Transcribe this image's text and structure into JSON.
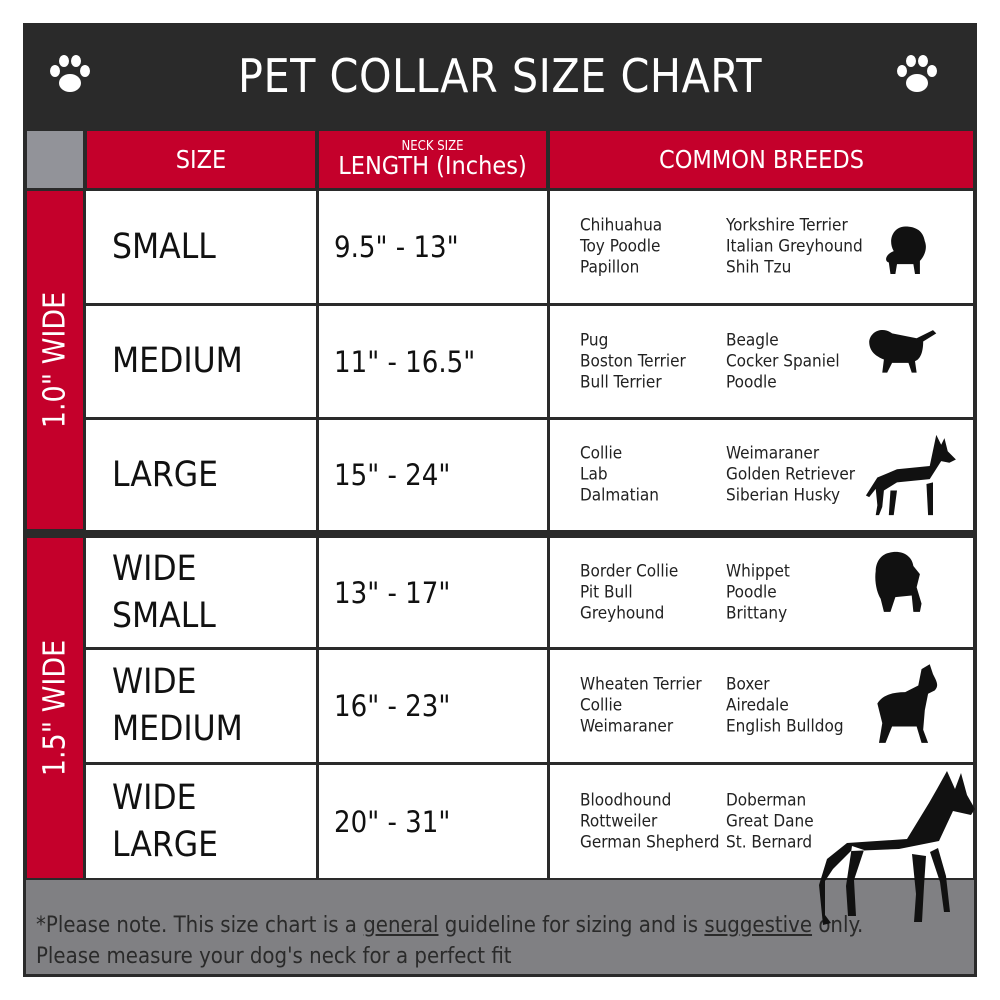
{
  "title": "PET COLLAR SIZE CHART",
  "icons": {
    "paw": "paw-print-icon"
  },
  "colors": {
    "header_bg": "#2a2a2a",
    "accent_red": "#c4002b",
    "footer_gray": "#808083"
  },
  "columns": {
    "size": "SIZE",
    "length_small": "NECK SIZE",
    "length": "LENGTH (Inches)",
    "breeds": "COMMON BREEDS"
  },
  "groups": [
    {
      "label": "1.0\" WIDE"
    },
    {
      "label": "1.5\" WIDE"
    }
  ],
  "rows": [
    {
      "size": "SMALL",
      "length": "9.5\" - 13\"",
      "breeds_a": [
        "Chihuahua",
        "Toy Poodle",
        "Papillon"
      ],
      "breeds_b": [
        "Yorkshire Terrier",
        "Italian Greyhound",
        "Shih Tzu"
      ]
    },
    {
      "size": "MEDIUM",
      "length": "11\" - 16.5\"",
      "breeds_a": [
        "Pug",
        "Boston Terrier",
        "Bull Terrier"
      ],
      "breeds_b": [
        "Beagle",
        "Cocker Spaniel",
        "Poodle"
      ]
    },
    {
      "size": "LARGE",
      "length": "15\" - 24\"",
      "breeds_a": [
        "Collie",
        "Lab",
        "Dalmatian"
      ],
      "breeds_b": [
        "Weimaraner",
        "Golden Retriever",
        "Siberian Husky"
      ]
    },
    {
      "size": "WIDE SMALL",
      "length": "13\" - 17\"",
      "breeds_a": [
        "Border Collie",
        "Pit Bull",
        "Greyhound"
      ],
      "breeds_b": [
        "Whippet",
        "Poodle",
        "Brittany"
      ]
    },
    {
      "size": "WIDE MEDIUM",
      "length": "16\" - 23\"",
      "breeds_a": [
        "Wheaten Terrier",
        "Collie",
        "Weimaraner"
      ],
      "breeds_b": [
        "Boxer",
        "Airedale",
        "English Bulldog"
      ]
    },
    {
      "size": "WIDE LARGE",
      "length": "20\" - 31\"",
      "breeds_a": [
        "Bloodhound",
        "Rottweiler",
        "German Shepherd"
      ],
      "breeds_b": [
        "Doberman",
        "Great Dane",
        "St. Bernard"
      ]
    }
  ],
  "footer": {
    "p1": "*Please note. This size chart is a",
    "u1": "general",
    "p2": "guideline for sizing and is",
    "u2": "suggestive",
    "p3": "only.",
    "line2": "Please measure your dog's neck for a perfect fit"
  }
}
